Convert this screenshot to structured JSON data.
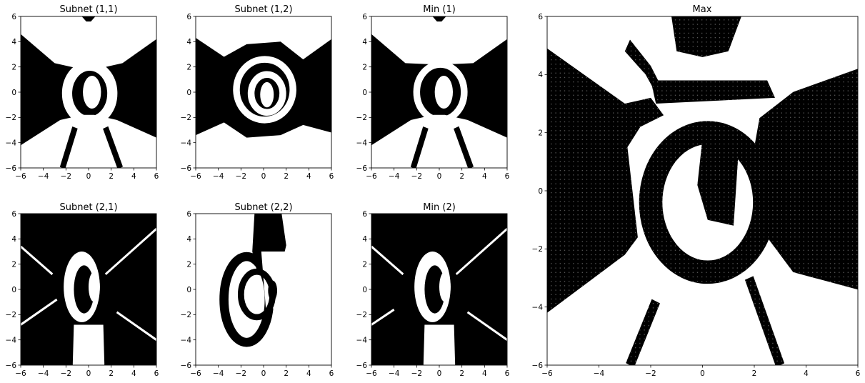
{
  "chart_data": [
    {
      "type": "heatmap",
      "title": "Subnet (1,1)",
      "xlim": [
        -6,
        6
      ],
      "ylim": [
        -6,
        6
      ],
      "xticks": [
        -6,
        -4,
        -2,
        0,
        2,
        4,
        6
      ],
      "yticks": [
        -6,
        -4,
        -2,
        0,
        2,
        4,
        6
      ],
      "colors": [
        "#000000",
        "#ffffff"
      ],
      "shapes": [
        {
          "kind": "poly",
          "fill": "#000000",
          "pts": [
            [
              -6,
              4.6
            ],
            [
              -3,
              2.3
            ],
            [
              -0.5,
              1.8
            ],
            [
              0.5,
              1.8
            ],
            [
              3,
              2.3
            ],
            [
              6,
              4.2
            ],
            [
              6,
              -3.6
            ],
            [
              2.5,
              -2.2
            ],
            [
              0.5,
              -1.8
            ],
            [
              -0.5,
              -1.8
            ],
            [
              -2.5,
              -2.2
            ],
            [
              -6,
              -4.2
            ]
          ]
        },
        {
          "kind": "poly",
          "fill": "#000000",
          "pts": [
            [
              -0.6,
              6
            ],
            [
              0.6,
              6
            ],
            [
              0.2,
              5.6
            ],
            [
              -0.2,
              5.6
            ]
          ]
        },
        {
          "kind": "ring",
          "fill": "#ffffff",
          "cx": 0.1,
          "cy": -0.1,
          "rx": 2.0,
          "ry": 2.2,
          "w": 0.9
        },
        {
          "kind": "ellipse",
          "fill": "#ffffff",
          "cx": 0.3,
          "cy": 0.0,
          "rx": 0.8,
          "ry": 1.3
        },
        {
          "kind": "thick",
          "fill": "#000000",
          "w": 0.5,
          "pts": [
            [
              -1.2,
              -2.8
            ],
            [
              -2.3,
              -6
            ]
          ]
        },
        {
          "kind": "thick",
          "fill": "#000000",
          "w": 0.5,
          "pts": [
            [
              1.5,
              -2.8
            ],
            [
              2.8,
              -6
            ]
          ]
        },
        {
          "kind": "thick",
          "fill": "#ffffff",
          "w": 0.8,
          "pts": [
            [
              -3.2,
              5.4
            ],
            [
              -2.0,
              4.0
            ],
            [
              -1.2,
              3.0
            ]
          ]
        }
      ]
    },
    {
      "type": "heatmap",
      "title": "Subnet (1,2)",
      "xlim": [
        -6,
        6
      ],
      "ylim": [
        -6,
        6
      ],
      "xticks": [
        -6,
        -4,
        -2,
        0,
        2,
        4,
        6
      ],
      "yticks": [
        -6,
        -4,
        -2,
        0,
        2,
        4,
        6
      ],
      "colors": [
        "#000000",
        "#ffffff"
      ],
      "shapes": [
        {
          "kind": "poly",
          "fill": "#000000",
          "pts": [
            [
              -6,
              4.3
            ],
            [
              -3.5,
              2.8
            ],
            [
              -1.5,
              3.8
            ],
            [
              1.5,
              4.0
            ],
            [
              3.5,
              2.6
            ],
            [
              6,
              4.2
            ],
            [
              6,
              -3.2
            ],
            [
              3.5,
              -2.6
            ],
            [
              1.5,
              -3.4
            ],
            [
              -1.5,
              -3.6
            ],
            [
              -3.5,
              -2.4
            ],
            [
              -6,
              -3.4
            ]
          ]
        },
        {
          "kind": "ring",
          "fill": "#ffffff",
          "cx": 0.1,
          "cy": 0.2,
          "rx": 2.5,
          "ry": 2.4,
          "w": 0.6
        },
        {
          "kind": "ring",
          "fill": "#ffffff",
          "cx": 0.3,
          "cy": -0.1,
          "rx": 1.4,
          "ry": 1.5,
          "w": 0.6
        },
        {
          "kind": "ellipse",
          "fill": "#ffffff",
          "cx": 0.3,
          "cy": -0.2,
          "rx": 0.6,
          "ry": 1.0
        }
      ]
    },
    {
      "type": "heatmap",
      "title": "Min (1)",
      "xlim": [
        -6,
        6
      ],
      "ylim": [
        -6,
        6
      ],
      "xticks": [
        -6,
        -4,
        -2,
        0,
        2,
        4,
        6
      ],
      "yticks": [
        -6,
        -4,
        -2,
        0,
        2,
        4,
        6
      ],
      "colors": [
        "#000000",
        "#ffffff"
      ],
      "shapes": [
        {
          "kind": "poly",
          "fill": "#000000",
          "pts": [
            [
              -6,
              4.6
            ],
            [
              -3,
              2.3
            ],
            [
              -0.5,
              2.2
            ],
            [
              0.5,
              2.2
            ],
            [
              3,
              2.3
            ],
            [
              6,
              4.2
            ],
            [
              6,
              -3.6
            ],
            [
              2.5,
              -2.2
            ],
            [
              0.5,
              -1.8
            ],
            [
              -0.5,
              -1.8
            ],
            [
              -2.5,
              -2.2
            ],
            [
              -6,
              -4.2
            ]
          ]
        },
        {
          "kind": "poly",
          "fill": "#000000",
          "pts": [
            [
              -0.6,
              6
            ],
            [
              0.6,
              6
            ],
            [
              0.2,
              5.6
            ],
            [
              -0.2,
              5.6
            ]
          ]
        },
        {
          "kind": "ring",
          "fill": "#ffffff",
          "cx": 0.1,
          "cy": 0.0,
          "rx": 2.1,
          "ry": 2.2,
          "w": 0.6
        },
        {
          "kind": "ellipse",
          "fill": "#ffffff",
          "cx": 0.4,
          "cy": 0.0,
          "rx": 0.8,
          "ry": 1.3
        },
        {
          "kind": "thick",
          "fill": "#000000",
          "w": 0.5,
          "pts": [
            [
              -1.2,
              -2.8
            ],
            [
              -2.3,
              -6
            ]
          ]
        },
        {
          "kind": "thick",
          "fill": "#000000",
          "w": 0.5,
          "pts": [
            [
              1.5,
              -2.8
            ],
            [
              2.8,
              -6
            ]
          ]
        },
        {
          "kind": "thick",
          "fill": "#ffffff",
          "w": 0.8,
          "pts": [
            [
              -3.2,
              5.4
            ],
            [
              -2.0,
              4.0
            ],
            [
              -1.2,
              3.0
            ]
          ]
        }
      ]
    },
    {
      "type": "heatmap",
      "title": "Subnet (2,1)",
      "xlim": [
        -6,
        6
      ],
      "ylim": [
        -6,
        6
      ],
      "xticks": [
        -6,
        -4,
        -2,
        0,
        2,
        4,
        6
      ],
      "yticks": [
        -6,
        -4,
        -2,
        0,
        2,
        4,
        6
      ],
      "colors": [
        "#000000",
        "#ffffff"
      ],
      "shapes": [
        {
          "kind": "rect",
          "fill": "#000000",
          "x0": -6,
          "y0": -6,
          "x1": 6,
          "y1": 6
        },
        {
          "kind": "thick",
          "fill": "#ffffff",
          "w": 0.18,
          "pts": [
            [
              -6,
              3.4
            ],
            [
              -3.2,
              1.2
            ]
          ]
        },
        {
          "kind": "thick",
          "fill": "#ffffff",
          "w": 0.18,
          "pts": [
            [
              -6,
              -2.8
            ],
            [
              -2.8,
              -0.8
            ]
          ]
        },
        {
          "kind": "thick",
          "fill": "#ffffff",
          "w": 0.18,
          "pts": [
            [
              1.5,
              1.2
            ],
            [
              6,
              4.8
            ]
          ]
        },
        {
          "kind": "thick",
          "fill": "#ffffff",
          "w": 0.18,
          "pts": [
            [
              2.5,
              -1.8
            ],
            [
              6,
              -4
            ]
          ]
        },
        {
          "kind": "ellipse",
          "fill": "#ffffff",
          "cx": -0.6,
          "cy": 0.2,
          "rx": 1.6,
          "ry": 2.8
        },
        {
          "kind": "ellipse",
          "fill": "#000000",
          "cx": -0.4,
          "cy": 0.0,
          "rx": 0.9,
          "ry": 1.9
        },
        {
          "kind": "poly",
          "fill": "#ffffff",
          "pts": [
            [
              -1.3,
              -2.8
            ],
            [
              1.3,
              -2.8
            ],
            [
              1.4,
              -6
            ],
            [
              -1.4,
              -6
            ]
          ]
        },
        {
          "kind": "ellipse",
          "fill": "#ffffff",
          "cx": 0.5,
          "cy": 0.2,
          "rx": 0.5,
          "ry": 1.2
        }
      ]
    },
    {
      "type": "heatmap",
      "title": "Subnet (2,2)",
      "xlim": [
        -6,
        6
      ],
      "ylim": [
        -6,
        6
      ],
      "xticks": [
        -6,
        -4,
        -2,
        0,
        2,
        4,
        6
      ],
      "yticks": [
        -6,
        -4,
        -2,
        0,
        2,
        4,
        6
      ],
      "colors": [
        "#000000",
        "#ffffff"
      ],
      "shapes": [
        {
          "kind": "poly",
          "fill": "#000000",
          "pts": [
            [
              -0.8,
              6
            ],
            [
              1.6,
              6
            ],
            [
              2.0,
              3.5
            ],
            [
              1.5,
              1.6
            ],
            [
              -0.6,
              1.5
            ],
            [
              -1.0,
              3.0
            ]
          ]
        },
        {
          "kind": "ring",
          "fill": "#000000",
          "cx": -1.5,
          "cy": -0.8,
          "rx": 2.0,
          "ry": 3.4,
          "w": 0.8
        },
        {
          "kind": "poly",
          "fill": "#ffffff",
          "pts": [
            [
              -0.2,
              3.0
            ],
            [
              2.5,
              3.0
            ],
            [
              2.5,
              -1.5
            ],
            [
              0.2,
              -1.5
            ]
          ]
        },
        {
          "kind": "ring",
          "fill": "#000000",
          "cx": -0.6,
          "cy": -0.4,
          "rx": 1.4,
          "ry": 1.8,
          "w": 0.55
        },
        {
          "kind": "ellipse",
          "fill": "#000000",
          "cx": 0.8,
          "cy": -0.1,
          "rx": 0.4,
          "ry": 0.8
        }
      ]
    },
    {
      "type": "heatmap",
      "title": "Min (2)",
      "xlim": [
        -6,
        6
      ],
      "ylim": [
        -6,
        6
      ],
      "xticks": [
        -6,
        -4,
        -2,
        0,
        2,
        4,
        6
      ],
      "yticks": [
        -6,
        -4,
        -2,
        0,
        2,
        4,
        6
      ],
      "colors": [
        "#000000",
        "#ffffff"
      ],
      "shapes": [
        {
          "kind": "rect",
          "fill": "#000000",
          "x0": -6,
          "y0": -6,
          "x1": 6,
          "y1": 6
        },
        {
          "kind": "thick",
          "fill": "#ffffff",
          "w": 0.18,
          "pts": [
            [
              -6,
              3.4
            ],
            [
              -3.2,
              1.2
            ]
          ]
        },
        {
          "kind": "thick",
          "fill": "#ffffff",
          "w": 0.18,
          "pts": [
            [
              -6,
              -2.8
            ],
            [
              -4.0,
              -1.6
            ]
          ]
        },
        {
          "kind": "thick",
          "fill": "#ffffff",
          "w": 0.18,
          "pts": [
            [
              1.5,
              1.2
            ],
            [
              6,
              4.8
            ]
          ]
        },
        {
          "kind": "thick",
          "fill": "#ffffff",
          "w": 0.18,
          "pts": [
            [
              2.5,
              -1.8
            ],
            [
              6,
              -4
            ]
          ]
        },
        {
          "kind": "ellipse",
          "fill": "#ffffff",
          "cx": -0.6,
          "cy": 0.2,
          "rx": 1.6,
          "ry": 2.8
        },
        {
          "kind": "ellipse",
          "fill": "#000000",
          "cx": -0.4,
          "cy": 0.0,
          "rx": 0.9,
          "ry": 1.9
        },
        {
          "kind": "poly",
          "fill": "#ffffff",
          "pts": [
            [
              -1.3,
              -2.8
            ],
            [
              1.3,
              -2.8
            ],
            [
              1.4,
              -6
            ],
            [
              -1.4,
              -6
            ]
          ]
        },
        {
          "kind": "ellipse",
          "fill": "#ffffff",
          "cx": 0.5,
          "cy": 0.2,
          "rx": 0.5,
          "ry": 1.2
        }
      ]
    },
    {
      "type": "scatter",
      "title": "Max",
      "xlim": [
        -6,
        6
      ],
      "ylim": [
        -6,
        6
      ],
      "xticks": [
        -6,
        -4,
        -2,
        0,
        2,
        4,
        6
      ],
      "yticks": [
        -6,
        -4,
        -2,
        0,
        2,
        4,
        6
      ],
      "colors": [
        "#000000",
        "#ffffff"
      ],
      "shapes": [
        {
          "kind": "poly",
          "fill": "#000000",
          "pts": [
            [
              -6,
              4.9
            ],
            [
              -3,
              3.0
            ],
            [
              -2.0,
              3.2
            ],
            [
              -1.5,
              2.6
            ],
            [
              -2.4,
              2.2
            ],
            [
              -2.9,
              1.5
            ],
            [
              -2.5,
              -1.6
            ],
            [
              -3,
              -2.2
            ],
            [
              -6,
              -4.2
            ]
          ]
        },
        {
          "kind": "poly",
          "fill": "#000000",
          "pts": [
            [
              6,
              4.2
            ],
            [
              3.5,
              3.4
            ],
            [
              2.2,
              2.5
            ],
            [
              2.0,
              1.5
            ],
            [
              2.5,
              -0.5
            ],
            [
              2.5,
              -1.6
            ],
            [
              3.5,
              -2.8
            ],
            [
              6,
              -3.4
            ]
          ]
        },
        {
          "kind": "poly",
          "fill": "#000000",
          "pts": [
            [
              -1.2,
              6
            ],
            [
              1.5,
              6
            ],
            [
              1.0,
              4.8
            ],
            [
              0,
              4.6
            ],
            [
              -1.0,
              4.8
            ]
          ]
        },
        {
          "kind": "poly",
          "fill": "#000000",
          "pts": [
            [
              -2.8,
              5.2
            ],
            [
              -2.0,
              4.3
            ],
            [
              -1.6,
              3.6
            ],
            [
              -1.7,
              3.2
            ],
            [
              -2.2,
              4.0
            ],
            [
              -3.0,
              4.8
            ]
          ]
        },
        {
          "kind": "poly",
          "fill": "#000000",
          "pts": [
            [
              -2.0,
              3.8
            ],
            [
              2.5,
              3.8
            ],
            [
              2.8,
              3.2
            ],
            [
              -1.8,
              3.0
            ]
          ]
        },
        {
          "kind": "ring",
          "fill": "#000000",
          "cx": 0.2,
          "cy": -0.4,
          "rx": 2.2,
          "ry": 2.4,
          "w": 0.9
        },
        {
          "kind": "poly",
          "fill": "#000000",
          "pts": [
            [
              0,
              1.8
            ],
            [
              1.4,
              1.5
            ],
            [
              1.2,
              -1.2
            ],
            [
              0.2,
              -1.0
            ],
            [
              -0.2,
              0.2
            ]
          ]
        },
        {
          "kind": "thick",
          "fill": "#000000",
          "w": 0.35,
          "pts": [
            [
              -1.8,
              -3.8
            ],
            [
              -2.8,
              -6
            ]
          ]
        },
        {
          "kind": "thick",
          "fill": "#000000",
          "w": 0.35,
          "pts": [
            [
              1.8,
              -3.0
            ],
            [
              3.0,
              -6
            ]
          ]
        },
        {
          "kind": "thick",
          "fill": "#000000",
          "w": 0.3,
          "pts": [
            [
              -6,
              2.8
            ],
            [
              -4.6,
              1.5
            ]
          ]
        },
        {
          "kind": "thick",
          "fill": "#000000",
          "w": 0.3,
          "pts": [
            [
              -6,
              -2.2
            ],
            [
              -4.6,
              -1.4
            ]
          ]
        }
      ]
    }
  ]
}
